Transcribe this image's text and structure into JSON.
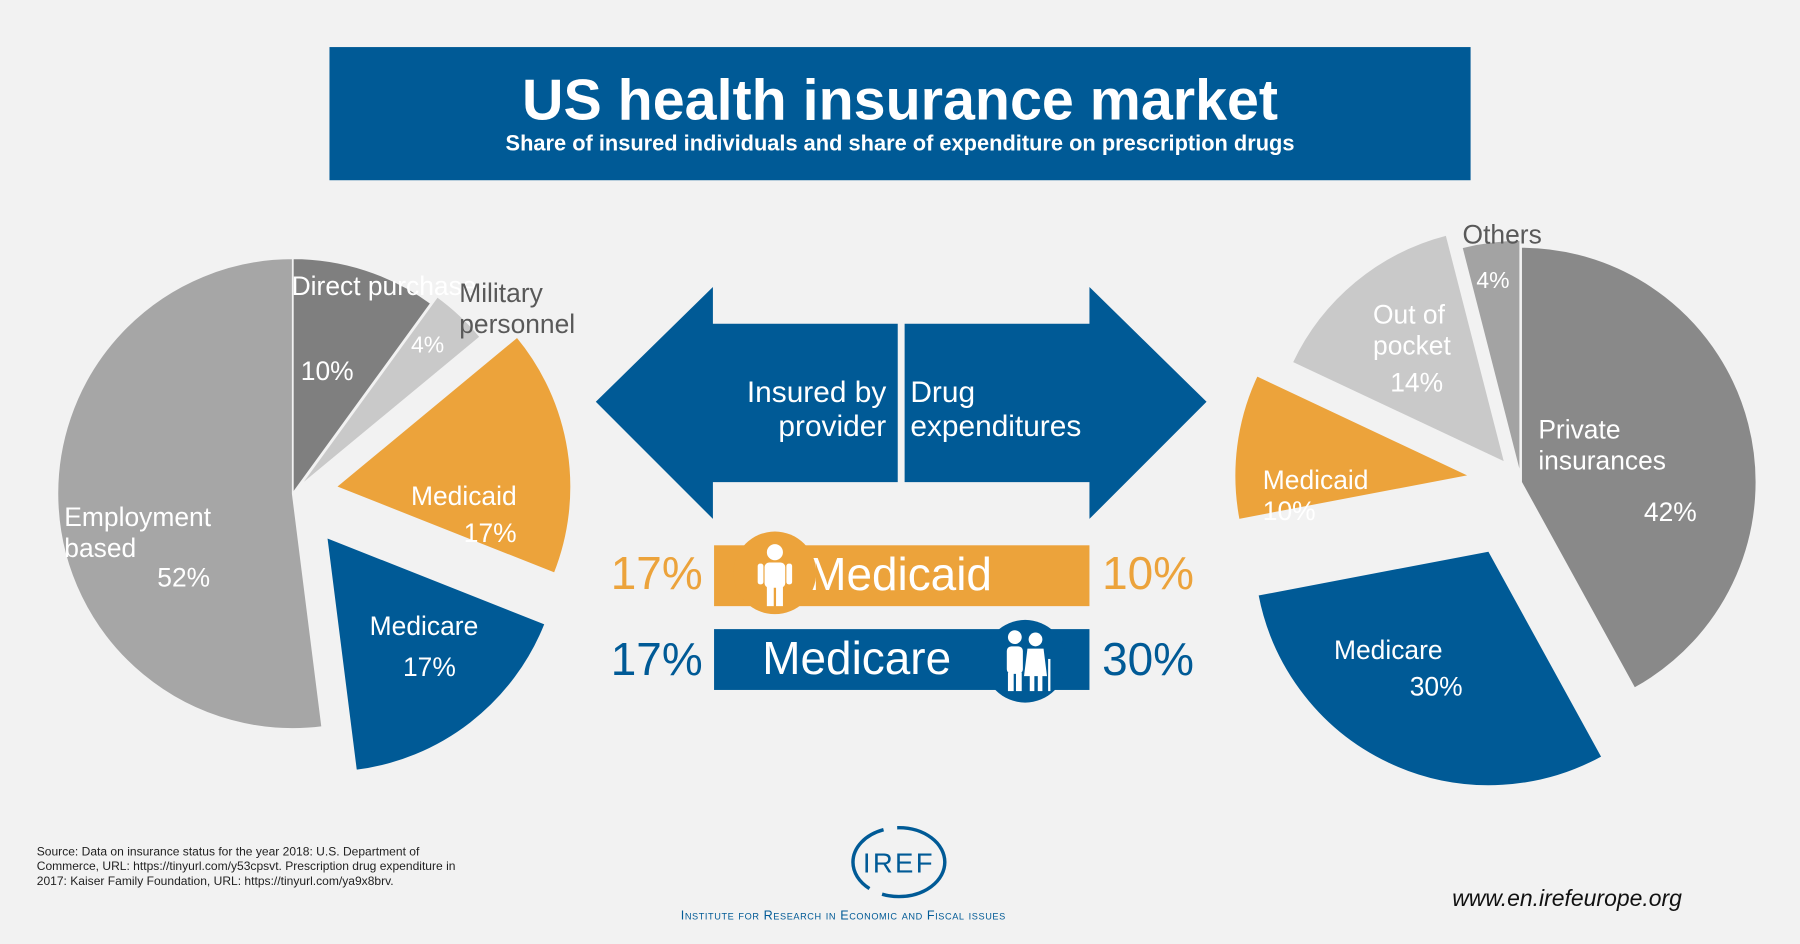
{
  "header": {
    "title": "US health insurance market",
    "subtitle": "Share of insured individuals and share of expenditure on prescription drugs"
  },
  "chart_data": [
    {
      "type": "pie",
      "title": "Insured by provider",
      "slices": [
        {
          "label": "Direct purchase",
          "value": 10,
          "display": "10%",
          "color": "#7f7f7f"
        },
        {
          "label": "Military personnel",
          "value": 4,
          "display": "4%",
          "color": "#c9c9c9"
        },
        {
          "label": "Medicaid",
          "value": 17,
          "display": "17%",
          "color": "#eca33b"
        },
        {
          "label": "Medicare",
          "value": 17,
          "display": "17%",
          "color": "#005a96"
        },
        {
          "label": "Employment based",
          "value": 52,
          "display": "52%",
          "color": "#a6a6a6"
        }
      ]
    },
    {
      "type": "pie",
      "title": "Drug expenditures",
      "slices": [
        {
          "label": "Private insurances",
          "value": 42,
          "display": "42%",
          "color": "#898989"
        },
        {
          "label": "Medicare",
          "value": 30,
          "display": "30%",
          "color": "#005a96"
        },
        {
          "label": "Medicaid",
          "value": 10,
          "display": "10%",
          "color": "#eca33b"
        },
        {
          "label": "Out of pocket",
          "value": 14,
          "display": "14%",
          "color": "#c9c9c9"
        },
        {
          "label": "Others",
          "value": 4,
          "display": "4%",
          "color": "#a3a3a3"
        }
      ]
    }
  ],
  "center": {
    "left_arrow": "Insured by provider",
    "right_arrow": "Drug expenditures",
    "medicaid": {
      "label": "Medicaid",
      "insured": "17%",
      "drugs": "10%"
    },
    "medicare": {
      "label": "Medicare",
      "insured": "17%",
      "drugs": "30%"
    }
  },
  "footer": {
    "source": "Source: Data on insurance status for the year 2018: U.S. Department of Commerce, URL: https://tinyurl.com/y53cpsvt. Prescription drug expenditure in 2017: Kaiser Family Foundation, URL: https://tinyurl.com/ya9x8brv.",
    "logo": "IREF",
    "institute": "Institute for Research in Economic and Fiscal issues",
    "website": "www.en.irefeurope.org"
  },
  "colors": {
    "blue": "#005a96",
    "orange": "#eca33b",
    "background": "#f2f2f2"
  }
}
